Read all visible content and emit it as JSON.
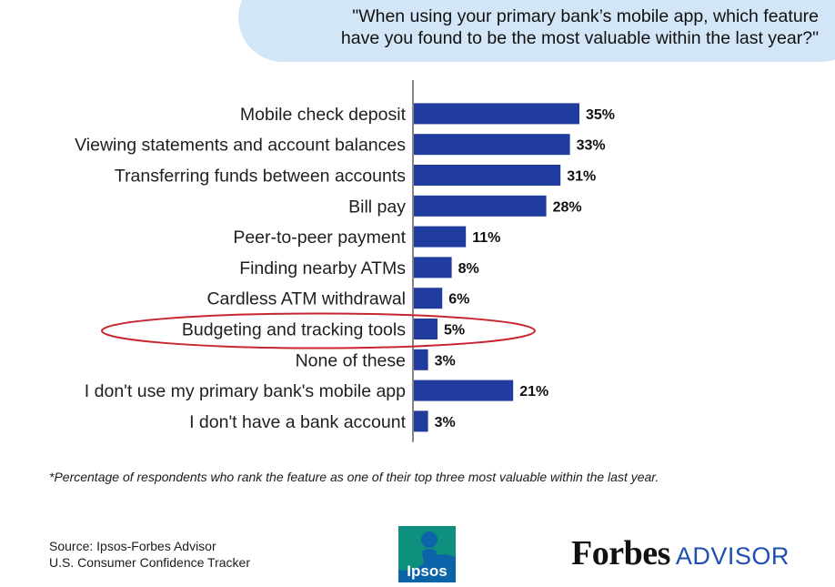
{
  "header": {
    "question_line1": "\"When using your primary bank’s mobile app, which feature",
    "question_line2": "have you found to be the most valuable within the last year?\""
  },
  "chart_data": {
    "type": "bar",
    "orientation": "horizontal",
    "categories": [
      "Mobile check deposit",
      "Viewing statements and account balances",
      "Transferring funds between accounts",
      "Bill pay",
      "Peer-to-peer payment",
      "Finding nearby ATMs",
      "Cardless ATM withdrawal",
      "Budgeting and tracking tools",
      "None of these",
      "I don't use my primary bank's mobile app",
      "I don't have a bank account"
    ],
    "values": [
      35,
      33,
      31,
      28,
      11,
      8,
      6,
      5,
      3,
      21,
      3
    ],
    "value_labels": [
      "35%",
      "33%",
      "31%",
      "28%",
      "11%",
      "8%",
      "6%",
      "5%",
      "3%",
      "21%",
      "3%"
    ],
    "highlighted": "Budgeting and tracking tools",
    "bar_color": "#1f3c9e",
    "highlight_color": "#c8262e",
    "xlim": [
      0,
      100
    ]
  },
  "footnote": "*Percentage of respondents who rank the feature as one of their top three most valuable within the last year.",
  "source": {
    "line1": "Source: Ipsos-Forbes Advisor",
    "line2": "U.S. Consumer Confidence Tracker"
  },
  "logos": {
    "ipsos": "Ipsos",
    "brand_name": "Forbes",
    "brand_sub": "ADVISOR"
  }
}
